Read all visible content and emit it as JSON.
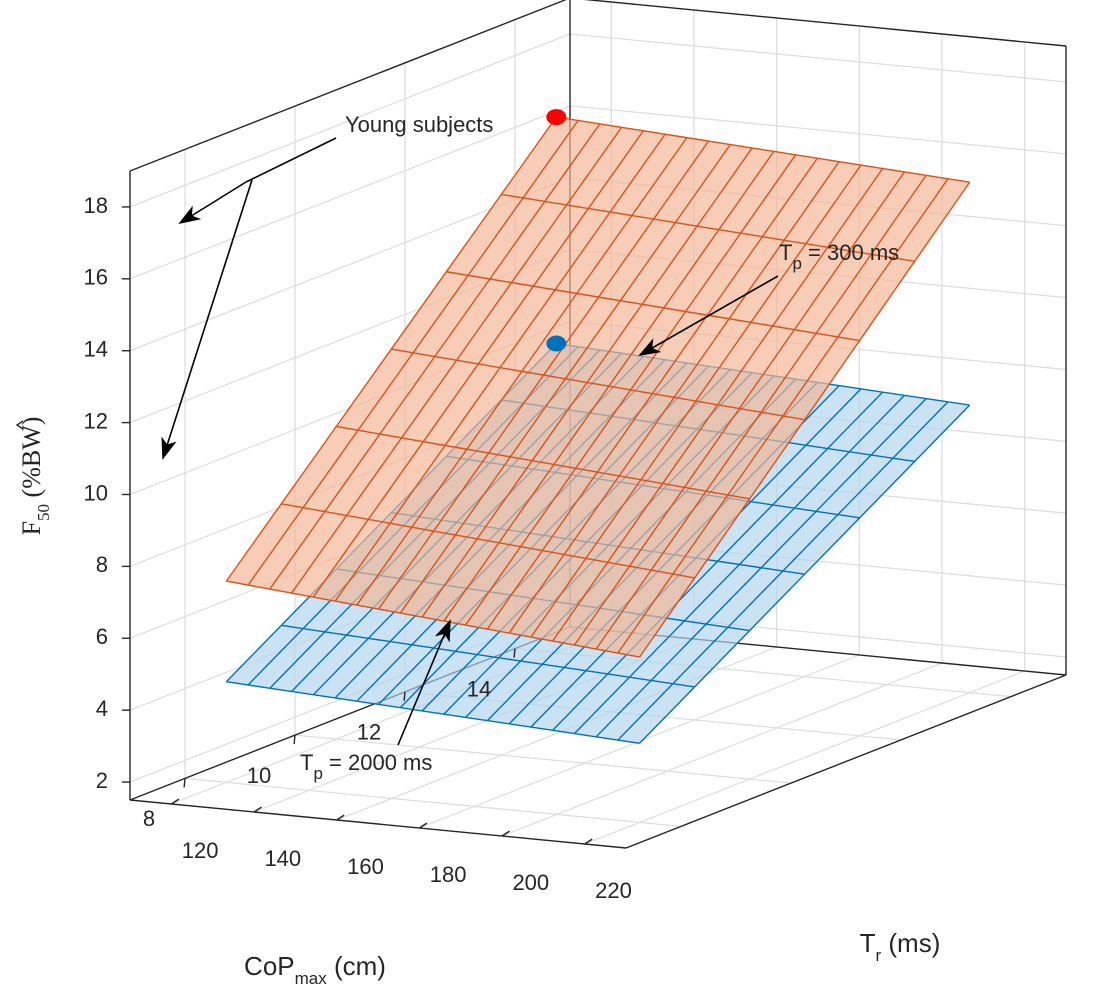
{
  "chart_data": {
    "type": "surface3d",
    "axes": {
      "x": {
        "label_main": "T",
        "label_sub": "r",
        "label_unit": " (ms)",
        "ticks": [
          "120",
          "140",
          "160",
          "180",
          "200",
          "220"
        ],
        "range": [
          110,
          230
        ]
      },
      "y": {
        "label_main": "CoP",
        "label_sub": "max",
        "label_unit": " (cm)",
        "ticks": [
          "8",
          "10",
          "12",
          "14"
        ],
        "range": [
          7,
          15
        ]
      },
      "z": {
        "label_main": "F",
        "label_sub": "50",
        "label_unit": " (%BW)",
        "ticks": [
          "2",
          "4",
          "6",
          "8",
          "10",
          "12",
          "14",
          "16",
          "18"
        ],
        "range": [
          1.5,
          19
        ]
      }
    },
    "grid": true,
    "box": true,
    "series": [
      {
        "name": "Tp300",
        "label_main": "T",
        "label_sub": "p",
        "label_rest": " = 300 ms",
        "color": "#d95319",
        "fill": "#f3b596",
        "x_range": [
          120,
          220
        ],
        "y_range": [
          8,
          14
        ],
        "z_corners": {
          "T120_Cop14": 16.4,
          "T220_Cop14": 15.7,
          "T120_Cop8": 7.1,
          "T220_Cop8": 6.1
        }
      },
      {
        "name": "Tp2000",
        "label_main": "T",
        "label_sub": "p",
        "label_rest": " = 2000 ms",
        "color": "#0072bd",
        "fill": "#b3d4ec",
        "x_range": [
          120,
          220
        ],
        "y_range": [
          8,
          14
        ],
        "z_corners": {
          "T120_Cop14": 10.1,
          "T220_Cop14": 9.5,
          "T120_Cop8": 4.3,
          "T220_Cop8": 3.7
        }
      }
    ],
    "points": [
      {
        "series": "Tp300",
        "x": 120,
        "y": 14,
        "z": 16.4,
        "color": "#ff0000"
      },
      {
        "series": "Tp2000",
        "x": 120,
        "y": 14,
        "z": 10.1,
        "color": "#0072bd"
      }
    ],
    "annotations": {
      "young": "Young subjects"
    }
  }
}
